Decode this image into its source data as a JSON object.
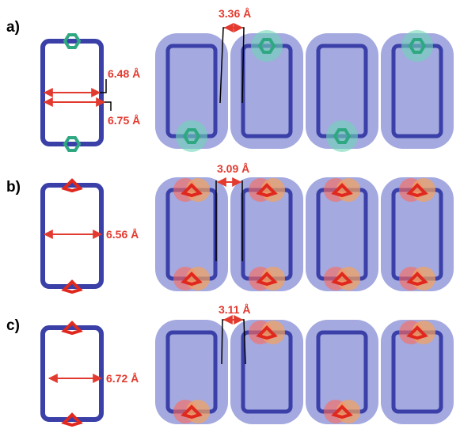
{
  "panels": [
    {
      "label": "a)",
      "measurements": [
        "6.48 Å",
        "6.75 Å"
      ],
      "spacing": "3.36 Å"
    },
    {
      "label": "b)",
      "measurements": [
        "6.56 Å"
      ],
      "spacing": "3.09 Å"
    },
    {
      "label": "c)",
      "measurements": [
        "6.72 Å"
      ],
      "spacing": "3.11 Å"
    }
  ]
}
